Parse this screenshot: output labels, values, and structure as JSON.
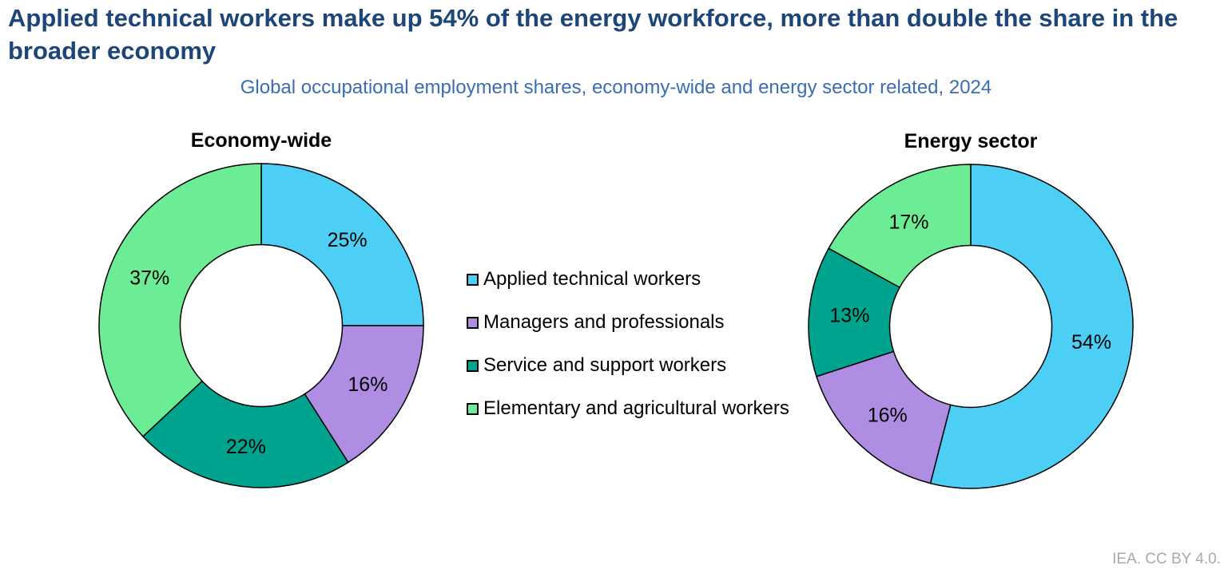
{
  "page": {
    "title": "Applied technical workers make up 54% of the energy workforce, more than double the share in the broader economy",
    "subtitle": "Global occupational employment shares, economy-wide and energy sector related, 2024",
    "attribution": "IEA. CC BY 4.0."
  },
  "colors": {
    "title_text": "#1C4679",
    "subtitle_text": "#3A6DB4",
    "attribution_text": "#A9A9A9",
    "slice_border": "#000000",
    "label_text": "#000000"
  },
  "legend": {
    "items": [
      {
        "label": "Applied technical workers",
        "color": "#4DCEF5"
      },
      {
        "label": "Managers and professionals",
        "color": "#AF8DE2"
      },
      {
        "label": "Service and support workers",
        "color": "#00A38E"
      },
      {
        "label": "Elementary and agricultural workers",
        "color": "#6CEC95"
      }
    ]
  },
  "chart_data": [
    {
      "type": "pie",
      "subtype": "donut",
      "title": "Economy-wide",
      "categories": [
        "Applied technical workers",
        "Managers and professionals",
        "Service and support workers",
        "Elementary and agricultural workers"
      ],
      "values": [
        25,
        16,
        22,
        37
      ],
      "labels": [
        "25%",
        "16%",
        "22%",
        "37%"
      ],
      "colors": [
        "#4DCEF5",
        "#AF8DE2",
        "#00A38E",
        "#6CEC95"
      ],
      "start_angle_deg": 0,
      "direction": "clockwise",
      "inner_radius_ratio": 0.5,
      "legend_position": "right-of-chart (shared, center of figure)"
    },
    {
      "type": "pie",
      "subtype": "donut",
      "title": "Energy sector",
      "categories": [
        "Applied technical workers",
        "Managers and professionals",
        "Service and support workers",
        "Elementary and agricultural workers"
      ],
      "values": [
        54,
        16,
        13,
        17
      ],
      "labels": [
        "54%",
        "16%",
        "13%",
        "17%"
      ],
      "colors": [
        "#4DCEF5",
        "#AF8DE2",
        "#00A38E",
        "#6CEC95"
      ],
      "start_angle_deg": 0,
      "direction": "clockwise",
      "inner_radius_ratio": 0.5,
      "legend_position": "left-of-chart (shared, center of figure)"
    }
  ]
}
